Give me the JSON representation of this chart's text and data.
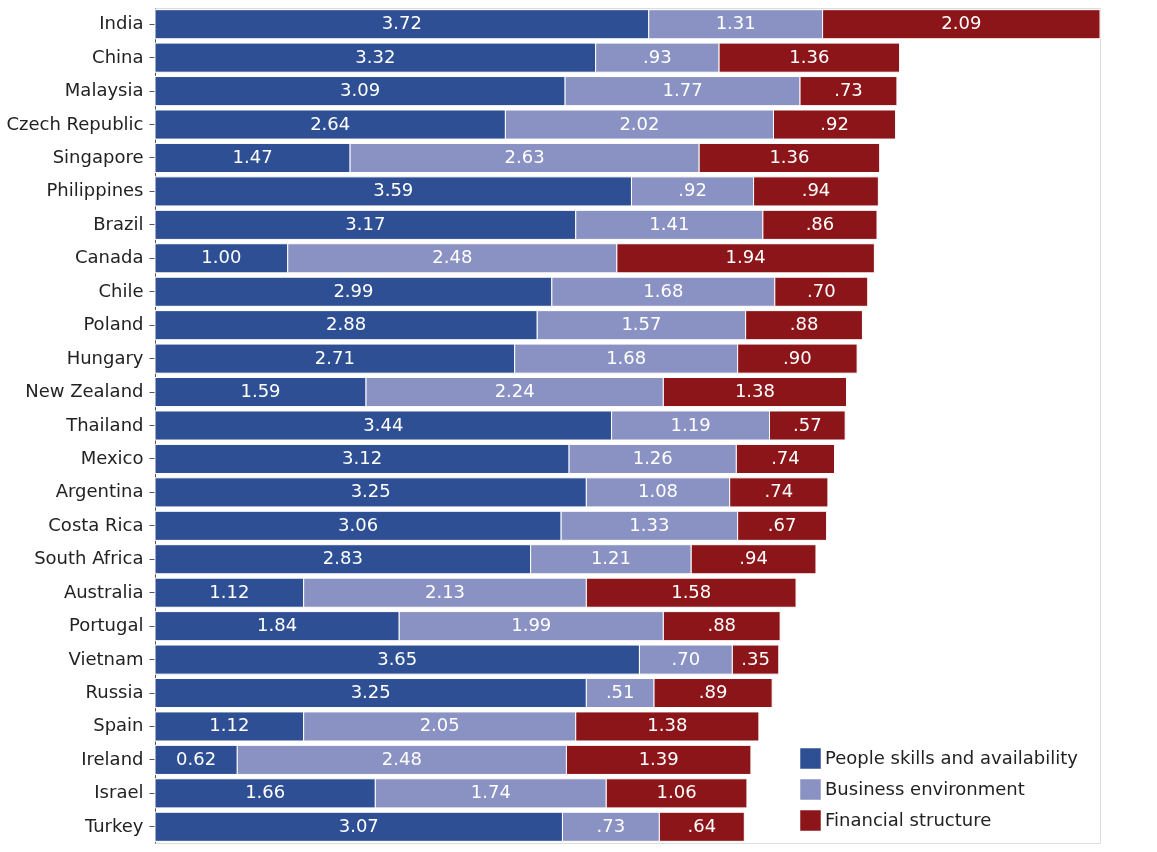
{
  "chart_data": {
    "type": "bar",
    "orientation": "horizontal",
    "stacked": true,
    "legend": "bottom right",
    "grid": false,
    "categories": [
      "India",
      "China",
      "Malaysia",
      "Czech Republic",
      "Singapore",
      "Philippines",
      "Brazil",
      "Canada",
      "Chile",
      "Poland",
      "Hungary",
      "New Zealand",
      "Thailand",
      "Mexico",
      "Argentina",
      "Costa Rica",
      "South Africa",
      "Australia",
      "Portugal",
      "Vietnam",
      "Russia",
      "Spain",
      "Ireland",
      "Israel",
      "Turkey"
    ],
    "series": [
      {
        "name": "People skills and availability",
        "color": "#2e4f93",
        "values": [
          3.72,
          3.32,
          3.09,
          2.64,
          1.47,
          3.59,
          3.17,
          1.0,
          2.99,
          2.88,
          2.71,
          1.59,
          3.44,
          3.12,
          3.25,
          3.06,
          2.83,
          1.12,
          1.84,
          3.65,
          3.25,
          1.12,
          0.62,
          1.66,
          3.07
        ],
        "value_labels": [
          "3.72",
          "3.32",
          "3.09",
          "2.64",
          "1.47",
          "3.59",
          "3.17",
          "1.00",
          "2.99",
          "2.88",
          "2.71",
          "1.59",
          "3.44",
          "3.12",
          "3.25",
          "3.06",
          "2.83",
          "1.12",
          "1.84",
          "3.65",
          "3.25",
          "1.12",
          "0.62",
          "1.66",
          "3.07"
        ]
      },
      {
        "name": "Business environment",
        "color": "#8a92c3",
        "values": [
          1.31,
          0.93,
          1.77,
          2.02,
          2.63,
          0.92,
          1.41,
          2.48,
          1.68,
          1.57,
          1.68,
          2.24,
          1.19,
          1.26,
          1.08,
          1.33,
          1.21,
          2.13,
          1.99,
          0.7,
          0.51,
          2.05,
          2.48,
          1.74,
          0.73
        ],
        "value_labels": [
          "1.31",
          ".93",
          "1.77",
          "2.02",
          "2.63",
          ".92",
          "1.41",
          "2.48",
          "1.68",
          "1.57",
          "1.68",
          "2.24",
          "1.19",
          "1.26",
          "1.08",
          "1.33",
          "1.21",
          "2.13",
          "1.99",
          ".70",
          ".51",
          "2.05",
          "2.48",
          "1.74",
          ".73"
        ]
      },
      {
        "name": "Financial structure",
        "color": "#8b1519",
        "values": [
          2.09,
          1.36,
          0.73,
          0.92,
          1.36,
          0.94,
          0.86,
          1.94,
          0.7,
          0.88,
          0.9,
          1.38,
          0.57,
          0.74,
          0.74,
          0.67,
          0.94,
          1.58,
          0.88,
          0.35,
          0.89,
          1.38,
          1.39,
          1.06,
          0.64
        ],
        "value_labels": [
          "2.09",
          "1.36",
          ".73",
          ".92",
          "1.36",
          ".94",
          ".86",
          "1.94",
          ".70",
          ".88",
          ".90",
          "1.38",
          ".57",
          ".74",
          ".74",
          ".67",
          ".94",
          "1.58",
          ".88",
          ".35",
          ".89",
          "1.38",
          "1.39",
          "1.06",
          ".64"
        ]
      }
    ]
  }
}
